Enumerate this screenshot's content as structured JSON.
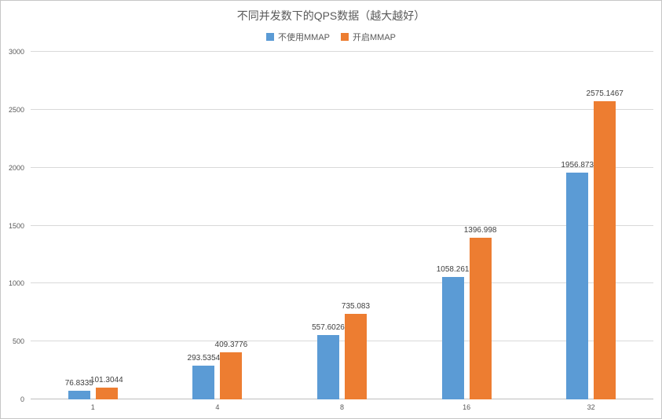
{
  "title": "不同并发数下的QPS数据（越大越好）",
  "legend": [
    {
      "label": "不使用MMAP",
      "color": "#5B9BD5"
    },
    {
      "label": "开启MMAP",
      "color": "#ED7D31"
    }
  ],
  "chart_data": {
    "type": "bar",
    "title": "不同并发数下的QPS数据（越大越好）",
    "categories": [
      "1",
      "4",
      "8",
      "16",
      "32"
    ],
    "series": [
      {
        "name": "不使用MMAP",
        "color": "#5B9BD5",
        "values": [
          76.8335,
          293.5354,
          557.6026,
          1058.261,
          1956.873
        ],
        "labels": [
          "76.8335",
          "293.5354",
          "557.6026",
          "1058.261",
          "1956.873"
        ]
      },
      {
        "name": "开启MMAP",
        "color": "#ED7D31",
        "values": [
          101.3044,
          409.3776,
          735.083,
          1396.998,
          2575.1467
        ],
        "labels": [
          "101.3044",
          "409.3776",
          "735.083",
          "1396.998",
          "2575.1467"
        ]
      }
    ],
    "xlabel": "",
    "ylabel": "",
    "ylim": [
      0,
      3000
    ],
    "ytick_step": 500,
    "grid": true,
    "legend_position": "top"
  }
}
